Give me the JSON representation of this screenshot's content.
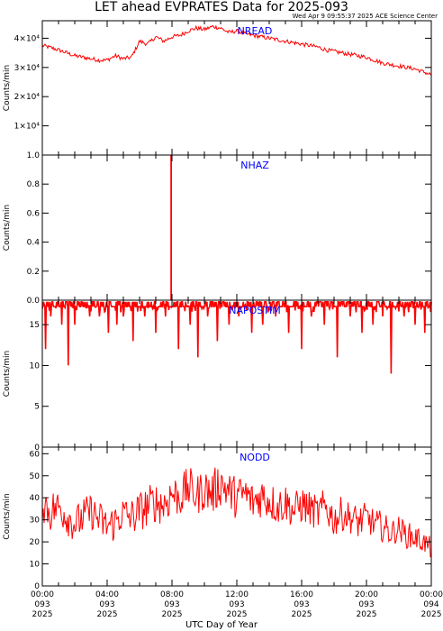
{
  "page": {
    "title": "LET ahead EVPRATES Data for 2025-093",
    "timestamp": "Wed Apr  9 09:55:37 2025 ACE Science Center",
    "xlabel": "UTC Day of Year"
  },
  "colors": {
    "trace": "#ff0000",
    "label": "#0000ff",
    "axis": "#000000"
  },
  "chart_data": [
    {
      "type": "line",
      "title": "NREAD",
      "ylabel": "Counts/min",
      "xlim": [
        0,
        24
      ],
      "ylim": [
        0,
        46000
      ],
      "ytick_values": [
        10000,
        20000,
        30000,
        40000
      ],
      "ytick_labels": [
        "1×10⁴",
        "2×10⁴",
        "3×10⁴",
        "4×10⁴"
      ],
      "x": [
        0,
        0.5,
        1,
        1.5,
        2,
        2.5,
        3,
        3.5,
        4,
        4.5,
        5,
        5.5,
        6,
        6.5,
        7,
        7.5,
        8,
        8.5,
        9,
        9.5,
        10,
        10.5,
        11,
        11.5,
        12,
        12.5,
        13,
        13.5,
        14,
        14.5,
        15,
        15.5,
        16,
        16.5,
        17,
        17.5,
        18,
        18.5,
        19,
        19.5,
        20,
        20.5,
        21,
        21.5,
        22,
        22.5,
        23,
        23.5,
        24
      ],
      "y": [
        37500,
        36800,
        36000,
        35000,
        34000,
        33500,
        33000,
        32500,
        32500,
        34000,
        33000,
        33500,
        39000,
        38000,
        40500,
        39000,
        40500,
        41000,
        42500,
        43500,
        43000,
        44000,
        43500,
        42000,
        42500,
        41500,
        41000,
        40500,
        40000,
        39500,
        39000,
        38500,
        38000,
        37500,
        37000,
        36000,
        35500,
        35000,
        34500,
        34000,
        33500,
        32500,
        31500,
        31000,
        30500,
        30000,
        29500,
        28500,
        27500
      ]
    },
    {
      "type": "line",
      "title": "NHAZ",
      "ylabel": "Counts/min",
      "xlim": [
        0,
        24
      ],
      "ylim": [
        0,
        1
      ],
      "ytick_values": [
        0,
        0.2,
        0.4,
        0.6,
        0.8,
        1.0
      ],
      "ytick_labels": [
        "0.0",
        "0.2",
        "0.4",
        "0.6",
        "0.8",
        "1.0"
      ],
      "x": [
        0,
        7.93,
        7.93,
        7.97,
        7.97,
        24
      ],
      "y": [
        0,
        0,
        1,
        1,
        0,
        0
      ]
    },
    {
      "type": "line",
      "title": "NAPOSTIM",
      "ylabel": "Counts/min",
      "xlim": [
        0,
        24
      ],
      "ylim": [
        0,
        18
      ],
      "ytick_values": [
        0,
        5,
        10,
        15
      ],
      "ytick_labels": [
        "0",
        "5",
        "10",
        "15"
      ],
      "x": [
        0,
        0.5,
        1,
        1.5,
        2,
        2.5,
        3,
        3.5,
        4,
        4.5,
        5,
        5.5,
        6,
        6.5,
        7,
        7.5,
        8,
        8.5,
        9,
        9.5,
        10,
        10.5,
        11,
        11.5,
        12,
        12.5,
        13,
        13.5,
        14,
        14.5,
        15,
        15.5,
        16,
        16.5,
        17,
        17.5,
        18,
        18.5,
        19,
        19.5,
        20,
        20.5,
        21,
        21.5,
        22,
        22.5,
        23,
        23.5,
        24
      ],
      "y": [
        17.5,
        17.5,
        17.5,
        17.5,
        17.5,
        17.5,
        17.5,
        17.5,
        17.5,
        17.5,
        17.5,
        17.5,
        17.5,
        17.5,
        17.5,
        17.5,
        17.5,
        17.5,
        17.5,
        17.5,
        17.5,
        17.5,
        17.5,
        17.5,
        17.5,
        17.5,
        17.5,
        17.5,
        17.5,
        17.5,
        17.5,
        17.5,
        17.5,
        17.5,
        17.5,
        17.5,
        17.5,
        17.5,
        17.5,
        17.5,
        17.5,
        17.5,
        17.5,
        17.5,
        17.5,
        17.5,
        17.5,
        17.5,
        17.5
      ],
      "dips_x": [
        0.2,
        0.5,
        1.2,
        1.6,
        2.0,
        2.9,
        3.5,
        4.1,
        4.6,
        5.0,
        5.6,
        6.3,
        7.0,
        7.6,
        8.4,
        9.1,
        9.6,
        10.2,
        10.8,
        11.5,
        12.1,
        12.9,
        13.6,
        14.4,
        15.2,
        16.0,
        16.6,
        17.4,
        18.2,
        19.0,
        19.7,
        20.4,
        21.0,
        21.5,
        22.3,
        23.0,
        23.6
      ],
      "dips_y": [
        12,
        16,
        15,
        10,
        15,
        16,
        16,
        14,
        15,
        16,
        13,
        16,
        14,
        16,
        12,
        15,
        11,
        16,
        13,
        15,
        16,
        14,
        15,
        16,
        14,
        12,
        16,
        15,
        11,
        16,
        14,
        15,
        16,
        9,
        16,
        15,
        14
      ]
    },
    {
      "type": "line",
      "title": "NODD",
      "ylabel": "Counts/min",
      "xlim": [
        0,
        24
      ],
      "ylim": [
        0,
        63
      ],
      "ytick_values": [
        0,
        10,
        20,
        30,
        40,
        50,
        60
      ],
      "ytick_labels": [
        "0",
        "10",
        "20",
        "30",
        "40",
        "50",
        "60"
      ],
      "xtick_values": [
        0,
        4,
        8,
        12,
        16,
        20,
        24
      ],
      "xtick_labels": [
        [
          "00:00",
          "093",
          "2025"
        ],
        [
          "04:00",
          "093",
          "2025"
        ],
        [
          "08:00",
          "093",
          "2025"
        ],
        [
          "12:00",
          "093",
          "2025"
        ],
        [
          "16:00",
          "093",
          "2025"
        ],
        [
          "20:00",
          "093",
          "2025"
        ],
        [
          "00:00",
          "094",
          "2025"
        ]
      ],
      "x": [
        0,
        0.5,
        1,
        1.5,
        2,
        2.5,
        3,
        3.5,
        4,
        4.5,
        5,
        5.5,
        6,
        6.5,
        7,
        7.5,
        8,
        8.5,
        9,
        9.5,
        10,
        10.5,
        11,
        11.5,
        12,
        12.5,
        13,
        13.5,
        14,
        14.5,
        15,
        15.5,
        16,
        16.5,
        17,
        17.5,
        18,
        18.5,
        19,
        19.5,
        20,
        20.5,
        21,
        21.5,
        22,
        22.5,
        23,
        23.5,
        24
      ],
      "y": [
        38,
        34,
        36,
        32,
        28,
        31,
        34,
        30,
        27,
        29,
        33,
        31,
        34,
        36,
        38,
        37,
        42,
        40,
        45,
        41,
        44,
        42,
        47,
        43,
        40,
        42,
        38,
        41,
        39,
        36,
        38,
        34,
        37,
        35,
        33,
        36,
        30,
        33,
        31,
        29,
        31,
        28,
        27,
        24,
        26,
        23,
        22,
        20,
        17
      ],
      "spread": [
        9,
        10,
        8,
        9,
        8,
        9,
        8,
        9,
        8,
        9,
        8,
        9,
        9,
        10,
        9,
        10,
        10,
        9,
        10,
        9,
        10,
        10,
        11,
        9,
        10,
        9,
        9,
        10,
        9,
        9,
        9,
        8,
        9,
        8,
        8,
        9,
        8,
        8,
        7,
        8,
        7,
        7,
        7,
        6,
        6,
        6,
        6,
        5,
        5
      ]
    }
  ]
}
